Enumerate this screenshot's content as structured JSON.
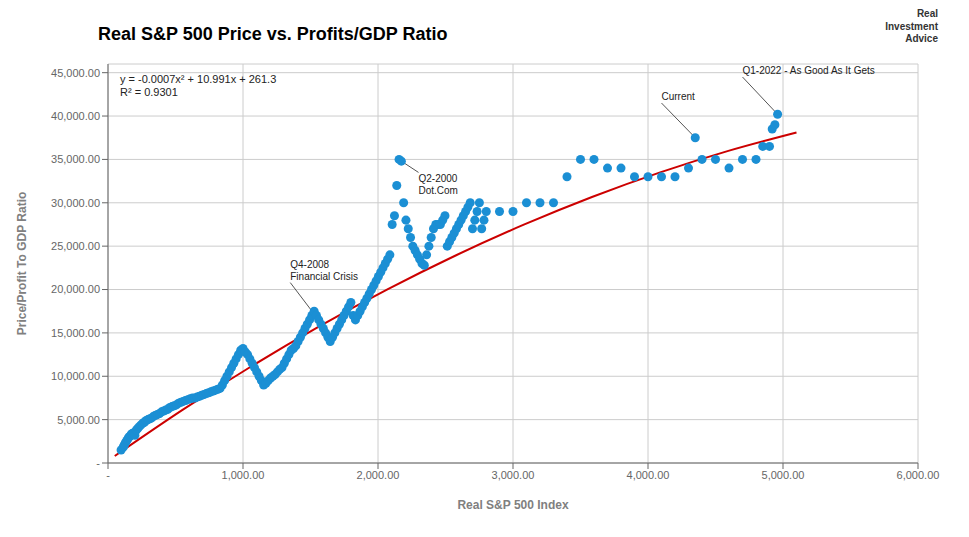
{
  "chart_data": {
    "type": "scatter",
    "title": "Real S&P 500 Price vs. Profits/GDP Ratio",
    "x_label": "Real S&P 500 Index",
    "y_label": "Price/Profit To GDP Ratio",
    "xlim": [
      0,
      6000
    ],
    "ylim": [
      0,
      46000
    ],
    "xticks": [
      {
        "value": 0,
        "label": "-"
      },
      {
        "value": 1000,
        "label": "1,000.00"
      },
      {
        "value": 2000,
        "label": "2,000.00"
      },
      {
        "value": 3000,
        "label": "3,000.00"
      },
      {
        "value": 4000,
        "label": "4,000.00"
      },
      {
        "value": 5000,
        "label": "5,000.00"
      },
      {
        "value": 6000,
        "label": "6,000.00"
      }
    ],
    "yticks": [
      {
        "value": 0,
        "label": "-"
      },
      {
        "value": 5000,
        "label": "5,000.00"
      },
      {
        "value": 10000,
        "label": "10,000.00"
      },
      {
        "value": 15000,
        "label": "15,000.00"
      },
      {
        "value": 20000,
        "label": "20,000.00"
      },
      {
        "value": 25000,
        "label": "25,000.00"
      },
      {
        "value": 30000,
        "label": "30,000.00"
      },
      {
        "value": 35000,
        "label": "35,000.00"
      },
      {
        "value": 40000,
        "label": "40,000.00"
      },
      {
        "value": 45000,
        "label": "45,000.00"
      }
    ],
    "grid": true,
    "series": [
      {
        "type": "scatter",
        "marker": "circle",
        "color": "#1B8FD4",
        "x": [
          97,
          112,
          118,
          125,
          131,
          140,
          148,
          155,
          163,
          172,
          180,
          190,
          199,
          210,
          221,
          232,
          245,
          258,
          270,
          283,
          296,
          310,
          324,
          338,
          353,
          368,
          382,
          397,
          412,
          427,
          443,
          458,
          474,
          490,
          507,
          523,
          540,
          557,
          574,
          591,
          609,
          626,
          643,
          660,
          677,
          694,
          711,
          728,
          745,
          762,
          779,
          796,
          813,
          830,
          847,
          864,
          881,
          898,
          915,
          932,
          949,
          966,
          983,
          1000,
          1017,
          1034,
          1051,
          1068,
          1085,
          1102,
          1119,
          1136,
          1153,
          1170,
          1187,
          1204,
          1221,
          1238,
          1255,
          1272,
          1289,
          1306,
          1323,
          1340,
          1357,
          1374,
          1391,
          1408,
          1425,
          1442,
          1459,
          1476,
          1493,
          1510,
          1527,
          1544,
          1561,
          1578,
          1595,
          1612,
          1629,
          1646,
          1663,
          1680,
          1697,
          1714,
          1731,
          1748,
          1765,
          1782,
          1799,
          1816,
          1833,
          1850,
          1867,
          1884,
          1901,
          1918,
          1935,
          1952,
          1969,
          1986,
          2003,
          2020,
          2037,
          2054,
          2071,
          2088,
          2105,
          2122,
          2139,
          2156,
          2173,
          2190,
          2207,
          2224,
          2241,
          2258,
          2275,
          2292,
          2309,
          2326,
          2343,
          2360,
          2377,
          2394,
          2411,
          2428,
          2445,
          2462,
          2479,
          2496,
          2513,
          2530,
          2547,
          2564,
          2581,
          2598,
          2615,
          2632,
          2649,
          2666,
          2683,
          2700,
          2717,
          2734,
          2751,
          2768,
          2785,
          2802,
          2900,
          3000,
          3100,
          3200,
          3300,
          3400,
          3500,
          3600,
          3700,
          3800,
          3900,
          4000,
          4100,
          4200,
          4300,
          4350,
          4400,
          4500,
          4600,
          4700,
          4800,
          4850,
          4900,
          4920,
          4940,
          4960
        ],
        "values": [
          1500,
          1800,
          2000,
          2200,
          2400,
          2600,
          2800,
          3000,
          3100,
          3300,
          3400,
          3500,
          3200,
          3800,
          4000,
          4200,
          4400,
          4600,
          4700,
          4900,
          5000,
          5100,
          5200,
          5400,
          5500,
          5600,
          5700,
          5900,
          6000,
          6100,
          6200,
          6400,
          6500,
          6600,
          6700,
          6900,
          7000,
          7100,
          7200,
          7300,
          7400,
          7500,
          7500,
          7600,
          7700,
          7800,
          7900,
          8000,
          8100,
          8200,
          8300,
          8400,
          8500,
          8600,
          9000,
          9500,
          10000,
          10500,
          11000,
          11500,
          12000,
          12500,
          13000,
          13200,
          12800,
          12500,
          12000,
          11500,
          11000,
          10500,
          10000,
          9500,
          9000,
          9200,
          9500,
          9800,
          10000,
          10200,
          10500,
          10800,
          11000,
          11500,
          12000,
          12500,
          13000,
          13200,
          13500,
          14000,
          14500,
          15000,
          15500,
          16000,
          16500,
          17000,
          17500,
          17000,
          16500,
          16000,
          15500,
          15000,
          14500,
          14000,
          14500,
          15000,
          15500,
          16000,
          16500,
          17000,
          17500,
          18000,
          18500,
          17000,
          16500,
          17000,
          17500,
          18000,
          18500,
          19000,
          19500,
          20000,
          20500,
          21000,
          21500,
          22000,
          22500,
          23000,
          23500,
          24000,
          27500,
          28500,
          32000,
          35000,
          34800,
          30000,
          28000,
          27000,
          26000,
          25000,
          24500,
          24000,
          23500,
          23000,
          22800,
          24000,
          25000,
          26000,
          27000,
          27500,
          27500,
          27500,
          28000,
          28500,
          25000,
          25500,
          26000,
          26500,
          27000,
          27500,
          28000,
          28500,
          29000,
          29500,
          30000,
          27000,
          28000,
          29000,
          30000,
          27000,
          28000,
          29000,
          29000,
          29000,
          30000,
          30000,
          30000,
          33000,
          35000,
          35000,
          34000,
          34000,
          33000,
          33000,
          33000,
          33000,
          34000,
          37500,
          35000,
          35000,
          34000,
          35000,
          35000,
          36500,
          36500,
          38500,
          39000,
          40200
        ]
      },
      {
        "type": "line",
        "line_style": "solid",
        "color": "#CC0000",
        "x": [
          50,
          555,
          1060,
          1565,
          2070,
          2575,
          3080,
          3585,
          4090,
          4595,
          5100
        ],
        "values": [
          809.1,
          6145.6875,
          11125.24,
          15747.7575,
          20013.24,
          23921.6875,
          27473.1,
          30667.4775,
          33504.82,
          35985.1275,
          38108.4
        ]
      }
    ],
    "annotations": [
      {
        "text": "y = -0.0007x² + 10.991x + 261.3\nR² = 0.9301"
      },
      {
        "text": "Real\nInvestment\nAdvice"
      },
      {
        "text": "Q4-2008\nFinancial Crisis",
        "x": 1560,
        "y": 16500,
        "text_x": 1350,
        "text_y": 20800
      },
      {
        "text": "Q2-2000\nDot.Com",
        "x": 2173,
        "y": 34800,
        "text_x": 2300,
        "text_y": 33500
      },
      {
        "text": "Q1-2022 - As Good As It Gets",
        "x": 4960,
        "y": 40200,
        "text_x": 4700,
        "text_y": 44500
      },
      {
        "text": "Current",
        "x": 4350,
        "y": 37500,
        "text_x": 4100,
        "text_y": 41500
      }
    ]
  }
}
